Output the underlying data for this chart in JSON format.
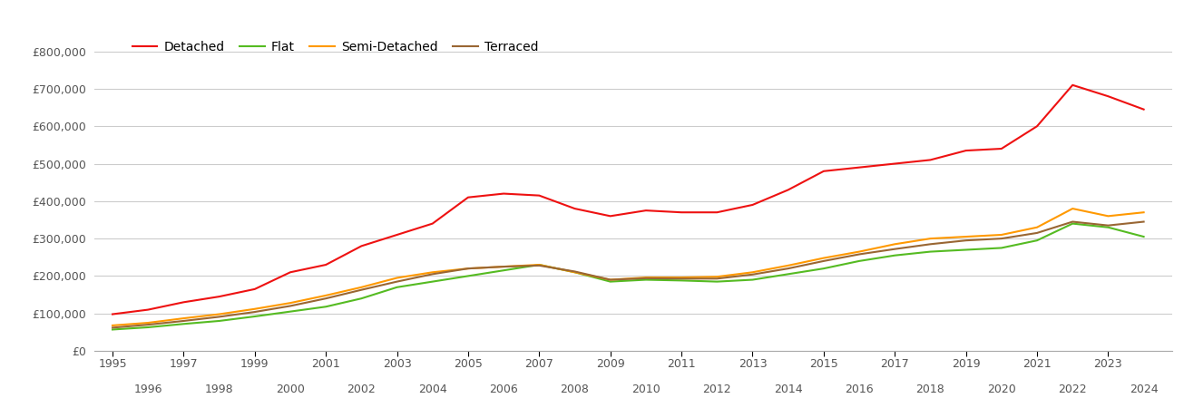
{
  "series": {
    "Detached": {
      "color": "#ee1111",
      "years": [
        1995,
        1996,
        1997,
        1998,
        1999,
        2000,
        2001,
        2002,
        2003,
        2004,
        2005,
        2006,
        2007,
        2008,
        2009,
        2010,
        2011,
        2012,
        2013,
        2014,
        2015,
        2016,
        2017,
        2018,
        2019,
        2020,
        2021,
        2022,
        2023,
        2024
      ],
      "values": [
        98000,
        110000,
        130000,
        145000,
        165000,
        210000,
        230000,
        280000,
        310000,
        340000,
        410000,
        420000,
        415000,
        380000,
        360000,
        375000,
        370000,
        370000,
        390000,
        430000,
        480000,
        490000,
        500000,
        510000,
        535000,
        540000,
        600000,
        710000,
        680000,
        645000
      ]
    },
    "Flat": {
      "color": "#55bb22",
      "years": [
        1995,
        1996,
        1997,
        1998,
        1999,
        2000,
        2001,
        2002,
        2003,
        2004,
        2005,
        2006,
        2007,
        2008,
        2009,
        2010,
        2011,
        2012,
        2013,
        2014,
        2015,
        2016,
        2017,
        2018,
        2019,
        2020,
        2021,
        2022,
        2023,
        2024
      ],
      "values": [
        57000,
        63000,
        72000,
        80000,
        92000,
        105000,
        118000,
        140000,
        170000,
        185000,
        200000,
        215000,
        230000,
        210000,
        185000,
        190000,
        188000,
        185000,
        190000,
        205000,
        220000,
        240000,
        255000,
        265000,
        270000,
        275000,
        295000,
        340000,
        330000,
        305000
      ]
    },
    "Semi-Detached": {
      "color": "#ff9900",
      "years": [
        1995,
        1996,
        1997,
        1998,
        1999,
        2000,
        2001,
        2002,
        2003,
        2004,
        2005,
        2006,
        2007,
        2008,
        2009,
        2010,
        2011,
        2012,
        2013,
        2014,
        2015,
        2016,
        2017,
        2018,
        2019,
        2020,
        2021,
        2022,
        2023,
        2024
      ],
      "values": [
        68000,
        75000,
        87000,
        98000,
        112000,
        128000,
        148000,
        170000,
        195000,
        210000,
        220000,
        225000,
        230000,
        210000,
        190000,
        196000,
        196000,
        198000,
        210000,
        228000,
        248000,
        265000,
        285000,
        300000,
        305000,
        310000,
        330000,
        380000,
        360000,
        370000
      ]
    },
    "Terraced": {
      "color": "#996633",
      "years": [
        1995,
        1996,
        1997,
        1998,
        1999,
        2000,
        2001,
        2002,
        2003,
        2004,
        2005,
        2006,
        2007,
        2008,
        2009,
        2010,
        2011,
        2012,
        2013,
        2014,
        2015,
        2016,
        2017,
        2018,
        2019,
        2020,
        2021,
        2022,
        2023,
        2024
      ],
      "values": [
        62000,
        70000,
        80000,
        91000,
        104000,
        120000,
        140000,
        163000,
        185000,
        205000,
        220000,
        225000,
        228000,
        212000,
        190000,
        194000,
        193000,
        193000,
        204000,
        220000,
        240000,
        258000,
        272000,
        285000,
        295000,
        300000,
        315000,
        345000,
        335000,
        345000
      ]
    }
  },
  "ylim": [
    0,
    850000
  ],
  "yticks": [
    0,
    100000,
    200000,
    300000,
    400000,
    500000,
    600000,
    700000,
    800000
  ],
  "xlim": [
    1994.5,
    2024.8
  ],
  "xticks_odd": [
    1995,
    1997,
    1999,
    2001,
    2003,
    2005,
    2007,
    2009,
    2011,
    2013,
    2015,
    2017,
    2019,
    2021,
    2023
  ],
  "xticks_even": [
    1996,
    1998,
    2000,
    2002,
    2004,
    2006,
    2008,
    2010,
    2012,
    2014,
    2016,
    2018,
    2020,
    2022,
    2024
  ],
  "grid_color": "#cccccc",
  "bg_color": "#ffffff",
  "text_color": "#555555",
  "legend_order": [
    "Detached",
    "Flat",
    "Semi-Detached",
    "Terraced"
  ]
}
